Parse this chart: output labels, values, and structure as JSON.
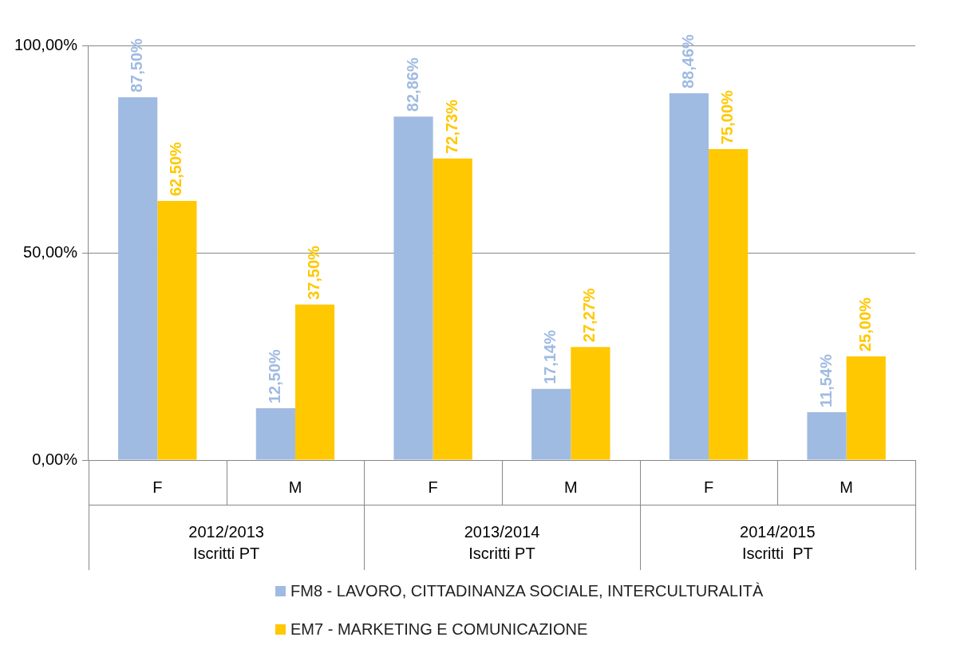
{
  "chart_data": {
    "type": "bar",
    "categories": [
      "F",
      "M",
      "F",
      "M",
      "F",
      "M"
    ],
    "series": [
      {
        "name": "FM8 - LAVORO, CITTADINANZA SOCIALE, INTERCULTURALITÀ",
        "color": "#a0bbe2",
        "values": [
          87.5,
          12.5,
          82.86,
          17.14,
          88.46,
          11.54
        ],
        "value_labels": [
          "87,50%",
          "12,50%",
          "82,86%",
          "17,14%",
          "88,46%",
          "11,54%"
        ]
      },
      {
        "name": "EM7 - MARKETING E COMUNICAZIONE",
        "color": "#ffc800",
        "values": [
          62.5,
          37.5,
          72.73,
          27.27,
          75.0,
          25.0
        ],
        "value_labels": [
          "62,50%",
          "37,50%",
          "72,73%",
          "27,27%",
          "75,00%",
          "25,00%"
        ]
      }
    ],
    "annotations": [
      "2012/2013\nIscritti PT",
      "2013/2014\nIscritti PT",
      "2014/2015\nIscritti  PT"
    ],
    "ylim": [
      0,
      100
    ],
    "yticks": [
      {
        "value": 0,
        "label": "0,00%"
      },
      {
        "value": 50,
        "label": "50,00%"
      },
      {
        "value": 100,
        "label": "100,00%"
      }
    ],
    "grid": "y",
    "legend": "bottom"
  }
}
